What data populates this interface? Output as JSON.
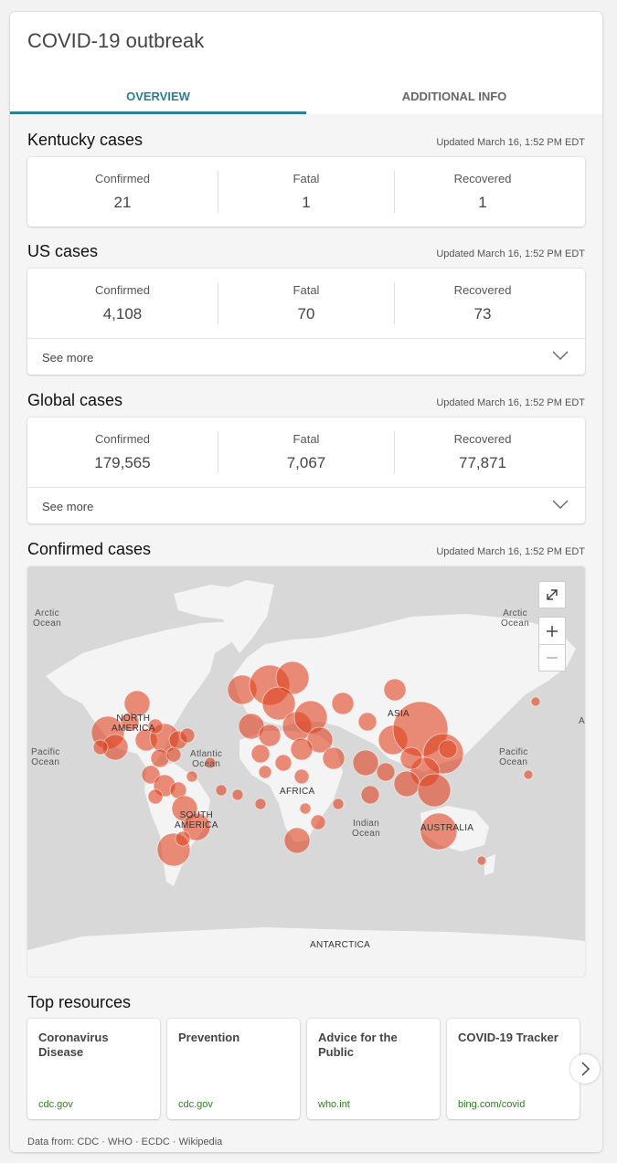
{
  "header": {
    "title": "COVID-19 outbreak"
  },
  "tabs": [
    {
      "label": "OVERVIEW"
    },
    {
      "label": "ADDITIONAL INFO"
    }
  ],
  "sections": [
    {
      "title": "Kentucky cases",
      "updated": "Updated March 16, 1:52 PM EDT",
      "stats": [
        {
          "label": "Confirmed",
          "value": "21"
        },
        {
          "label": "Fatal",
          "value": "1"
        },
        {
          "label": "Recovered",
          "value": "1"
        }
      ]
    },
    {
      "title": "US cases",
      "updated": "Updated March 16, 1:52 PM EDT",
      "stats": [
        {
          "label": "Confirmed",
          "value": "4,108"
        },
        {
          "label": "Fatal",
          "value": "70"
        },
        {
          "label": "Recovered",
          "value": "73"
        }
      ],
      "see_more": "See more"
    },
    {
      "title": "Global cases",
      "updated": "Updated March 16, 1:52 PM EDT",
      "stats": [
        {
          "label": "Confirmed",
          "value": "179,565"
        },
        {
          "label": "Fatal",
          "value": "7,067"
        },
        {
          "label": "Recovered",
          "value": "77,871"
        }
      ],
      "see_more": "See more"
    }
  ],
  "map": {
    "title": "Confirmed cases",
    "updated": "Updated March 16, 1:52 PM EDT",
    "labels": {
      "arctic_left": "Arctic\nOcean",
      "arctic_right": "Arctic\nOcean",
      "pacific_left": "Pacific\nOcean",
      "pacific_right": "Pacific\nOcean",
      "atlantic": "Atlantic\nOcean",
      "indian": "Indian\nOcean",
      "north_america": "NORTH\nAMERICA",
      "south_america": "SOUTH\nAMERICA",
      "africa": "AFRICA",
      "asia": "ASIA",
      "australia": "AUSTRALIA",
      "antarctica": "ANTARCTICA",
      "edge": "A"
    },
    "colors": {
      "water": "#d8d8d8",
      "land": "#f4f4f4",
      "bubble": "#e0431f"
    },
    "controls": [
      "expand-icon",
      "zoom-in-icon",
      "zoom-out-icon"
    ]
  },
  "resources": {
    "title": "Top resources",
    "items": [
      {
        "title": "Coronavirus Disease",
        "link": "cdc.gov"
      },
      {
        "title": "Prevention",
        "link": "cdc.gov"
      },
      {
        "title": "Advice for the Public",
        "link": "who.int"
      },
      {
        "title": "COVID-19 Tracker",
        "link": "bing.com/covid"
      }
    ]
  },
  "footer": {
    "text": "Data from: CDC · WHO · ECDC · Wikipedia"
  }
}
